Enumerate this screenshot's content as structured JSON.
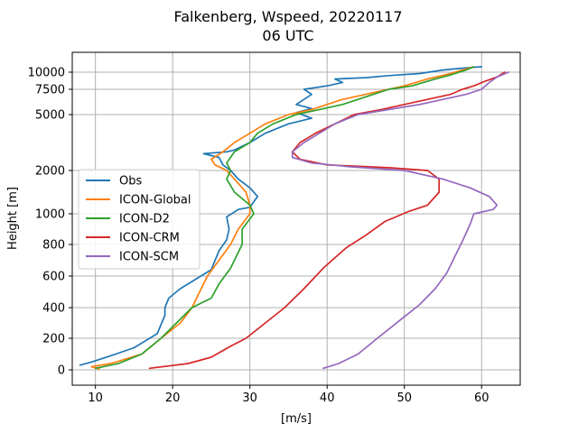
{
  "chart_data": {
    "type": "line",
    "title": "Falkenberg, Wspeed, 20220117",
    "subtitle": "06 UTC",
    "xlabel": "[m/s]",
    "ylabel": "Height [m]",
    "xlim": [
      7,
      65
    ],
    "x_ticks": [
      "10",
      "20",
      "30",
      "40",
      "50",
      "60"
    ],
    "y_ticks": [
      {
        "value": 0,
        "label": "0"
      },
      {
        "value": 200,
        "label": "200"
      },
      {
        "value": 400,
        "label": "400"
      },
      {
        "value": 600,
        "label": "600"
      },
      {
        "value": 800,
        "label": "800"
      },
      {
        "value": 1000,
        "label": "1000"
      },
      {
        "value": 2000,
        "label": "2000"
      },
      {
        "value": 5000,
        "label": "5000"
      },
      {
        "value": 7500,
        "label": "7500"
      },
      {
        "value": 10000,
        "label": "10000"
      }
    ],
    "grid": true,
    "legend_position": "center-left",
    "series": [
      {
        "name": "Obs",
        "color": "#1f77b4",
        "points": [
          [
            8.0,
            30
          ],
          [
            9.5,
            50
          ],
          [
            12,
            90
          ],
          [
            15,
            140
          ],
          [
            18,
            230
          ],
          [
            19,
            350
          ],
          [
            19,
            400
          ],
          [
            19.5,
            460
          ],
          [
            21,
            520
          ],
          [
            23,
            580
          ],
          [
            25,
            640
          ],
          [
            25.5,
            700
          ],
          [
            26,
            760
          ],
          [
            27,
            830
          ],
          [
            27.3,
            900
          ],
          [
            27,
            980
          ],
          [
            28.5,
            1100
          ],
          [
            30,
            1150
          ],
          [
            31,
            1400
          ],
          [
            30,
            1600
          ],
          [
            28.5,
            1800
          ],
          [
            27.5,
            2000
          ],
          [
            26.5,
            2300
          ],
          [
            26,
            2700
          ],
          [
            24,
            2900
          ],
          [
            27,
            3000
          ],
          [
            28,
            3100
          ],
          [
            30,
            3500
          ],
          [
            32,
            4000
          ],
          [
            35,
            4500
          ],
          [
            38,
            4800
          ],
          [
            36,
            5200
          ],
          [
            38,
            5600
          ],
          [
            36,
            6000
          ],
          [
            37,
            6500
          ],
          [
            38,
            7000
          ],
          [
            37,
            7500
          ],
          [
            40,
            8000
          ],
          [
            42,
            8500
          ],
          [
            41,
            9000
          ],
          [
            45,
            9200
          ],
          [
            48,
            9500
          ],
          [
            52,
            9800
          ],
          [
            55,
            10200
          ],
          [
            58,
            10400
          ],
          [
            60,
            10500
          ]
        ]
      },
      {
        "name": "ICON-Global",
        "color": "#ff7f0e",
        "points": [
          [
            10.5,
            5
          ],
          [
            9.5,
            20
          ],
          [
            12,
            40
          ],
          [
            16,
            100
          ],
          [
            18.5,
            200
          ],
          [
            21,
            300
          ],
          [
            22.5,
            400
          ],
          [
            23.5,
            500
          ],
          [
            24.5,
            600
          ],
          [
            26,
            700
          ],
          [
            27.5,
            800
          ],
          [
            28.5,
            900
          ],
          [
            30,
            1000
          ],
          [
            30,
            1200
          ],
          [
            29.5,
            1500
          ],
          [
            28,
            1800
          ],
          [
            27,
            2000
          ],
          [
            25.5,
            2300
          ],
          [
            25,
            2600
          ],
          [
            26.5,
            3000
          ],
          [
            28,
            3500
          ],
          [
            30,
            4000
          ],
          [
            32,
            4500
          ],
          [
            35,
            5000
          ],
          [
            38,
            5500
          ],
          [
            40,
            6000
          ],
          [
            42,
            6500
          ],
          [
            45,
            7000
          ],
          [
            48,
            7500
          ],
          [
            50,
            8000
          ],
          [
            53,
            9000
          ],
          [
            56,
            9800
          ],
          [
            58,
            10300
          ],
          [
            59,
            10500
          ]
        ]
      },
      {
        "name": "ICON-D2",
        "color": "#2ca02c",
        "points": [
          [
            10,
            10
          ],
          [
            13,
            40
          ],
          [
            16,
            100
          ],
          [
            18.5,
            200
          ],
          [
            20.5,
            300
          ],
          [
            22.5,
            400
          ],
          [
            25,
            460
          ],
          [
            26,
            550
          ],
          [
            27.5,
            650
          ],
          [
            29,
            800
          ],
          [
            29,
            900
          ],
          [
            30.5,
            1000
          ],
          [
            30,
            1200
          ],
          [
            28,
            1500
          ],
          [
            27,
            1800
          ],
          [
            27.5,
            2000
          ],
          [
            27,
            2400
          ],
          [
            28,
            3000
          ],
          [
            30,
            3500
          ],
          [
            31,
            4000
          ],
          [
            33,
            4500
          ],
          [
            36,
            5000
          ],
          [
            39,
            5500
          ],
          [
            42,
            6000
          ],
          [
            44,
            6500
          ],
          [
            46,
            7000
          ],
          [
            48,
            7500
          ],
          [
            51,
            8000
          ],
          [
            54,
            9000
          ],
          [
            56,
            9600
          ],
          [
            58,
            10200
          ],
          [
            59,
            10500
          ]
        ]
      },
      {
        "name": "ICON-CRM",
        "color": "#d62728",
        "points": [
          [
            17,
            10
          ],
          [
            22,
            40
          ],
          [
            25,
            80
          ],
          [
            27.5,
            150
          ],
          [
            29.5,
            200
          ],
          [
            32,
            300
          ],
          [
            34.5,
            400
          ],
          [
            37,
            520
          ],
          [
            39.5,
            650
          ],
          [
            42.5,
            780
          ],
          [
            45,
            860
          ],
          [
            47.5,
            950
          ],
          [
            50.5,
            1050
          ],
          [
            53,
            1200
          ],
          [
            54.5,
            1500
          ],
          [
            54.5,
            1800
          ],
          [
            53,
            2000
          ],
          [
            48,
            2150
          ],
          [
            40,
            2300
          ],
          [
            36.5,
            2600
          ],
          [
            35.5,
            3000
          ],
          [
            36.5,
            3500
          ],
          [
            38.5,
            4000
          ],
          [
            41,
            4500
          ],
          [
            43.5,
            5000
          ],
          [
            47,
            5500
          ],
          [
            50,
            6000
          ],
          [
            53,
            6500
          ],
          [
            56,
            7000
          ],
          [
            57.5,
            7500
          ],
          [
            59,
            8000
          ],
          [
            60.5,
            8700
          ],
          [
            62,
            9300
          ],
          [
            63,
            10000
          ]
        ]
      },
      {
        "name": "ICON-SCM",
        "color": "#9467bd",
        "points": [
          [
            39.5,
            10
          ],
          [
            41.5,
            40
          ],
          [
            44,
            100
          ],
          [
            46.5,
            200
          ],
          [
            49.5,
            320
          ],
          [
            52,
            420
          ],
          [
            54,
            520
          ],
          [
            55.5,
            620
          ],
          [
            56.5,
            720
          ],
          [
            57.5,
            820
          ],
          [
            58.5,
            930
          ],
          [
            59,
            1000
          ],
          [
            61.5,
            1100
          ],
          [
            62,
            1200
          ],
          [
            61,
            1400
          ],
          [
            58.5,
            1600
          ],
          [
            55,
            1800
          ],
          [
            50,
            2000
          ],
          [
            43,
            2200
          ],
          [
            38,
            2400
          ],
          [
            35.5,
            2700
          ],
          [
            35.5,
            3000
          ],
          [
            37,
            3500
          ],
          [
            39,
            4000
          ],
          [
            41,
            4500
          ],
          [
            44,
            5000
          ],
          [
            48,
            5500
          ],
          [
            52,
            6000
          ],
          [
            55,
            6500
          ],
          [
            58,
            7000
          ],
          [
            60,
            7500
          ],
          [
            61,
            8500
          ],
          [
            62,
            9300
          ],
          [
            63.5,
            10000
          ]
        ]
      }
    ]
  }
}
